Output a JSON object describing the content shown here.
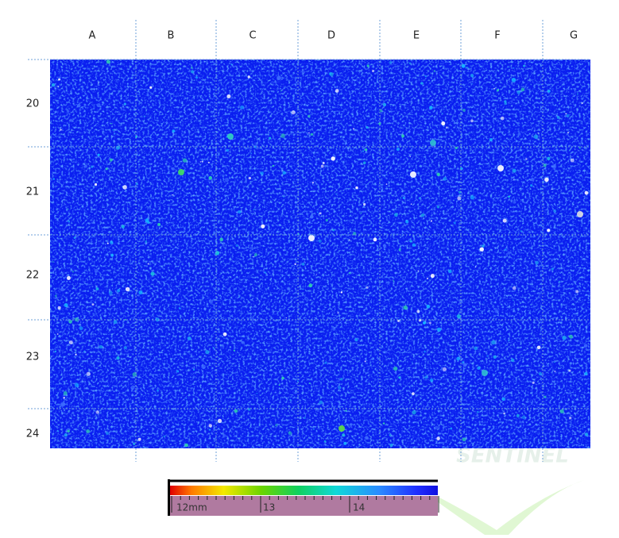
{
  "columns": [
    "A",
    "B",
    "C",
    "D",
    "E",
    "F",
    "G"
  ],
  "rows": [
    "20",
    "21",
    "22",
    "23",
    "24"
  ],
  "scale": {
    "labels": [
      "12mm",
      "13",
      "14"
    ]
  },
  "watermark": "SENTINEL"
}
